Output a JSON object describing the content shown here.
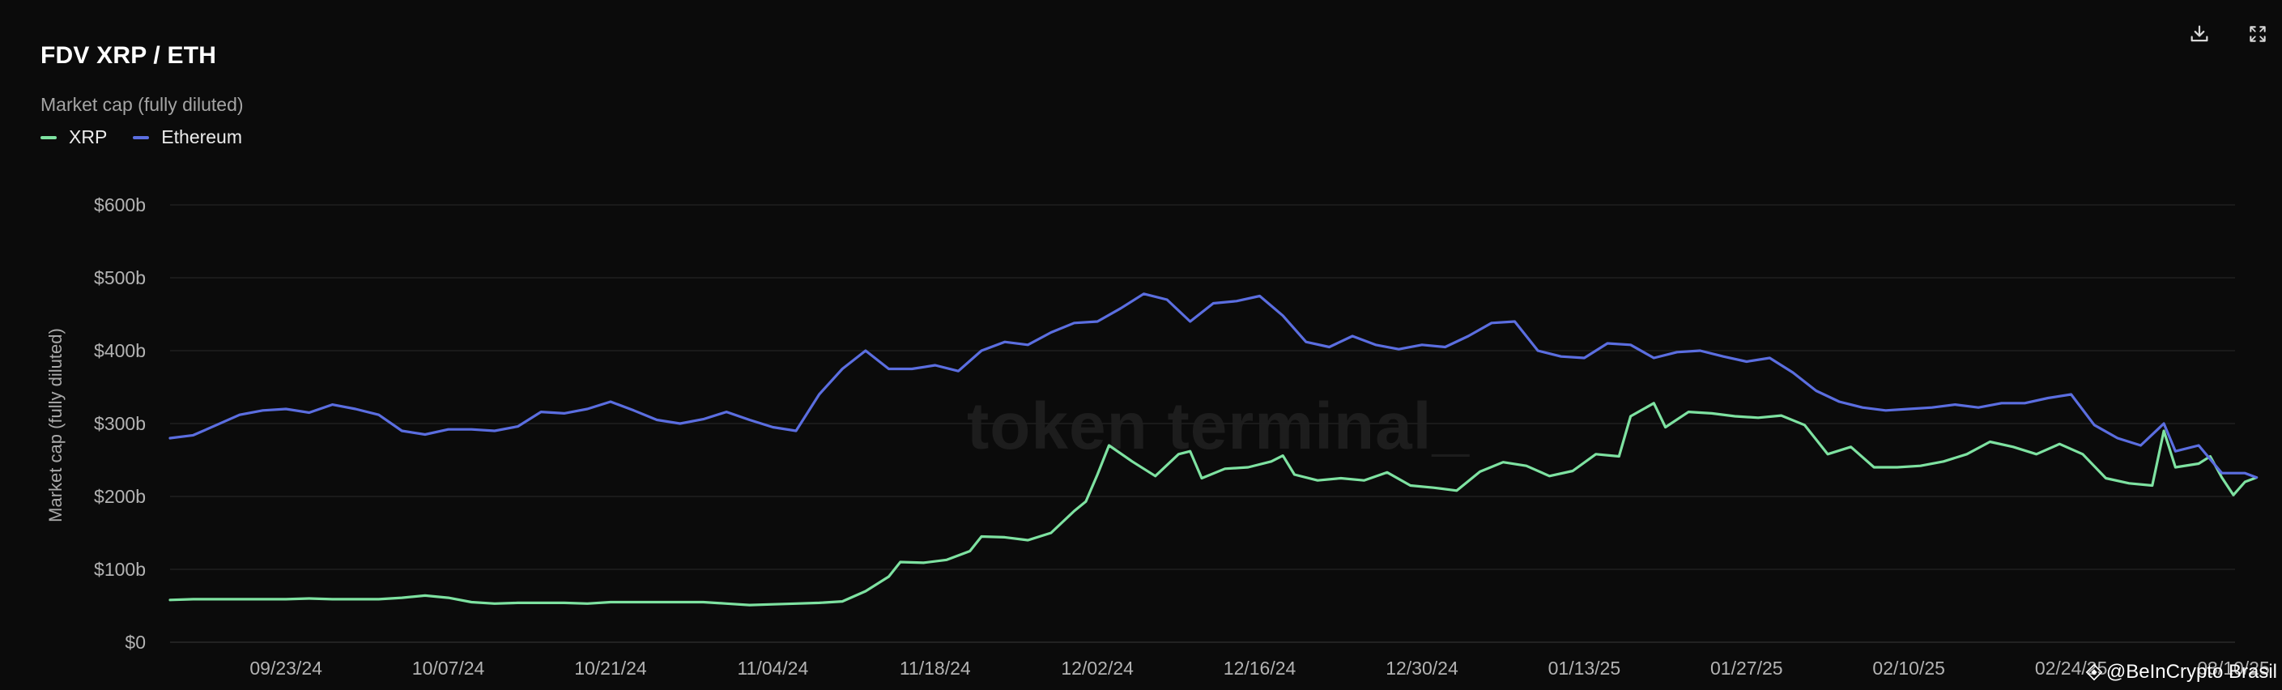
{
  "header": {
    "title": "FDV XRP / ETH",
    "subtitle": "Market cap (fully diluted)"
  },
  "toolbar": {
    "download_icon": "download-icon",
    "fullscreen_icon": "expand-icon"
  },
  "watermark": "token terminal_",
  "credit": "@BeInCrypto Brasil",
  "colors": {
    "xrp": "#7ee2a1",
    "ethereum": "#5b6ee0",
    "background": "#0b0b0b",
    "grid": "#1f1f1f"
  },
  "chart_data": {
    "type": "line",
    "title": "FDV XRP / ETH",
    "subtitle": "Market cap (fully diluted)",
    "ylabel": "Market cap (fully diluted)",
    "xlabel": "",
    "ylim": [
      0,
      600
    ],
    "y_unit": "billion USD",
    "yticks": [
      0,
      100,
      200,
      300,
      400,
      500,
      600
    ],
    "ytick_labels": [
      "$0",
      "$100b",
      "$200b",
      "$300b",
      "$400b",
      "$500b",
      "$600b"
    ],
    "xlim": [
      "2024-09-13",
      "2025-03-10"
    ],
    "xticks": [
      "2024-09-23",
      "2024-10-07",
      "2024-10-21",
      "2024-11-04",
      "2024-11-18",
      "2024-12-02",
      "2024-12-16",
      "2024-12-30",
      "2025-01-13",
      "2025-01-27",
      "2025-02-10",
      "2025-02-24",
      "2025-03-10"
    ],
    "xtick_labels": [
      "09/23/24",
      "10/07/24",
      "10/21/24",
      "11/04/24",
      "11/18/24",
      "12/02/24",
      "12/16/24",
      "12/30/24",
      "01/13/25",
      "01/27/25",
      "02/10/25",
      "02/24/25",
      "03/10/25"
    ],
    "grid": true,
    "legend_position": "top-left",
    "series": [
      {
        "name": "XRP",
        "color": "#7ee2a1",
        "points": [
          [
            "2024-09-13",
            58
          ],
          [
            "2024-09-15",
            59
          ],
          [
            "2024-09-17",
            59
          ],
          [
            "2024-09-19",
            59
          ],
          [
            "2024-09-21",
            59
          ],
          [
            "2024-09-23",
            59
          ],
          [
            "2024-09-25",
            60
          ],
          [
            "2024-09-27",
            59
          ],
          [
            "2024-09-29",
            59
          ],
          [
            "2024-10-01",
            59
          ],
          [
            "2024-10-03",
            61
          ],
          [
            "2024-10-05",
            64
          ],
          [
            "2024-10-07",
            61
          ],
          [
            "2024-10-09",
            55
          ],
          [
            "2024-10-11",
            53
          ],
          [
            "2024-10-13",
            54
          ],
          [
            "2024-10-15",
            54
          ],
          [
            "2024-10-17",
            54
          ],
          [
            "2024-10-19",
            53
          ],
          [
            "2024-10-21",
            55
          ],
          [
            "2024-10-23",
            55
          ],
          [
            "2024-10-25",
            55
          ],
          [
            "2024-10-27",
            55
          ],
          [
            "2024-10-29",
            55
          ],
          [
            "2024-10-31",
            53
          ],
          [
            "2024-11-02",
            51
          ],
          [
            "2024-11-04",
            52
          ],
          [
            "2024-11-06",
            53
          ],
          [
            "2024-11-08",
            54
          ],
          [
            "2024-11-10",
            56
          ],
          [
            "2024-11-12",
            70
          ],
          [
            "2024-11-14",
            90
          ],
          [
            "2024-11-15",
            110
          ],
          [
            "2024-11-17",
            109
          ],
          [
            "2024-11-19",
            113
          ],
          [
            "2024-11-21",
            125
          ],
          [
            "2024-11-22",
            145
          ],
          [
            "2024-11-24",
            144
          ],
          [
            "2024-11-26",
            140
          ],
          [
            "2024-11-28",
            150
          ],
          [
            "2024-11-30",
            180
          ],
          [
            "2024-12-01",
            193
          ],
          [
            "2024-12-02",
            230
          ],
          [
            "2024-12-03",
            270
          ],
          [
            "2024-12-05",
            248
          ],
          [
            "2024-12-07",
            228
          ],
          [
            "2024-12-09",
            258
          ],
          [
            "2024-12-10",
            262
          ],
          [
            "2024-12-11",
            225
          ],
          [
            "2024-12-13",
            238
          ],
          [
            "2024-12-15",
            240
          ],
          [
            "2024-12-17",
            248
          ],
          [
            "2024-12-18",
            256
          ],
          [
            "2024-12-19",
            230
          ],
          [
            "2024-12-21",
            222
          ],
          [
            "2024-12-23",
            225
          ],
          [
            "2024-12-25",
            222
          ],
          [
            "2024-12-27",
            233
          ],
          [
            "2024-12-29",
            215
          ],
          [
            "2024-12-31",
            212
          ],
          [
            "2025-01-02",
            208
          ],
          [
            "2025-01-04",
            234
          ],
          [
            "2025-01-06",
            247
          ],
          [
            "2025-01-08",
            242
          ],
          [
            "2025-01-10",
            228
          ],
          [
            "2025-01-12",
            235
          ],
          [
            "2025-01-14",
            258
          ],
          [
            "2025-01-16",
            255
          ],
          [
            "2025-01-17",
            310
          ],
          [
            "2025-01-19",
            328
          ],
          [
            "2025-01-20",
            295
          ],
          [
            "2025-01-22",
            316
          ],
          [
            "2025-01-24",
            314
          ],
          [
            "2025-01-26",
            310
          ],
          [
            "2025-01-28",
            308
          ],
          [
            "2025-01-30",
            311
          ],
          [
            "2025-02-01",
            298
          ],
          [
            "2025-02-03",
            258
          ],
          [
            "2025-02-05",
            268
          ],
          [
            "2025-02-07",
            240
          ],
          [
            "2025-02-09",
            240
          ],
          [
            "2025-02-11",
            242
          ],
          [
            "2025-02-13",
            248
          ],
          [
            "2025-02-15",
            258
          ],
          [
            "2025-02-17",
            275
          ],
          [
            "2025-02-19",
            268
          ],
          [
            "2025-02-21",
            258
          ],
          [
            "2025-02-23",
            272
          ],
          [
            "2025-02-25",
            258
          ],
          [
            "2025-02-27",
            225
          ],
          [
            "2025-03-01",
            218
          ],
          [
            "2025-03-03",
            215
          ],
          [
            "2025-03-04",
            290
          ],
          [
            "2025-03-05",
            240
          ],
          [
            "2025-03-07",
            245
          ],
          [
            "2025-03-08",
            255
          ],
          [
            "2025-03-09",
            226
          ],
          [
            "2025-03-10",
            202
          ],
          [
            "2025-03-11",
            220
          ],
          [
            "2025-03-12",
            226
          ]
        ]
      },
      {
        "name": "Ethereum",
        "color": "#5b6ee0",
        "points": [
          [
            "2024-09-13",
            280
          ],
          [
            "2024-09-15",
            284
          ],
          [
            "2024-09-17",
            298
          ],
          [
            "2024-09-19",
            312
          ],
          [
            "2024-09-21",
            318
          ],
          [
            "2024-09-23",
            320
          ],
          [
            "2024-09-25",
            315
          ],
          [
            "2024-09-27",
            326
          ],
          [
            "2024-09-29",
            320
          ],
          [
            "2024-10-01",
            312
          ],
          [
            "2024-10-03",
            290
          ],
          [
            "2024-10-05",
            285
          ],
          [
            "2024-10-07",
            292
          ],
          [
            "2024-10-09",
            292
          ],
          [
            "2024-10-11",
            290
          ],
          [
            "2024-10-13",
            296
          ],
          [
            "2024-10-15",
            316
          ],
          [
            "2024-10-17",
            314
          ],
          [
            "2024-10-19",
            320
          ],
          [
            "2024-10-21",
            330
          ],
          [
            "2024-10-23",
            318
          ],
          [
            "2024-10-25",
            305
          ],
          [
            "2024-10-27",
            300
          ],
          [
            "2024-10-29",
            306
          ],
          [
            "2024-10-31",
            316
          ],
          [
            "2024-11-02",
            305
          ],
          [
            "2024-11-04",
            295
          ],
          [
            "2024-11-06",
            290
          ],
          [
            "2024-11-08",
            340
          ],
          [
            "2024-11-10",
            375
          ],
          [
            "2024-11-12",
            400
          ],
          [
            "2024-11-14",
            375
          ],
          [
            "2024-11-16",
            375
          ],
          [
            "2024-11-18",
            380
          ],
          [
            "2024-11-20",
            372
          ],
          [
            "2024-11-22",
            400
          ],
          [
            "2024-11-24",
            412
          ],
          [
            "2024-11-26",
            408
          ],
          [
            "2024-11-28",
            425
          ],
          [
            "2024-11-30",
            438
          ],
          [
            "2024-12-02",
            440
          ],
          [
            "2024-12-04",
            458
          ],
          [
            "2024-12-06",
            478
          ],
          [
            "2024-12-08",
            470
          ],
          [
            "2024-12-10",
            440
          ],
          [
            "2024-12-12",
            465
          ],
          [
            "2024-12-14",
            468
          ],
          [
            "2024-12-16",
            475
          ],
          [
            "2024-12-18",
            448
          ],
          [
            "2024-12-20",
            412
          ],
          [
            "2024-12-22",
            405
          ],
          [
            "2024-12-24",
            420
          ],
          [
            "2024-12-26",
            408
          ],
          [
            "2024-12-28",
            402
          ],
          [
            "2024-12-30",
            408
          ],
          [
            "2025-01-01",
            405
          ],
          [
            "2025-01-03",
            420
          ],
          [
            "2025-01-05",
            438
          ],
          [
            "2025-01-07",
            440
          ],
          [
            "2025-01-09",
            400
          ],
          [
            "2025-01-11",
            392
          ],
          [
            "2025-01-13",
            390
          ],
          [
            "2025-01-15",
            410
          ],
          [
            "2025-01-17",
            408
          ],
          [
            "2025-01-19",
            390
          ],
          [
            "2025-01-21",
            398
          ],
          [
            "2025-01-23",
            400
          ],
          [
            "2025-01-25",
            392
          ],
          [
            "2025-01-27",
            385
          ],
          [
            "2025-01-29",
            390
          ],
          [
            "2025-01-31",
            370
          ],
          [
            "2025-02-02",
            345
          ],
          [
            "2025-02-04",
            330
          ],
          [
            "2025-02-06",
            322
          ],
          [
            "2025-02-08",
            318
          ],
          [
            "2025-02-10",
            320
          ],
          [
            "2025-02-12",
            322
          ],
          [
            "2025-02-14",
            326
          ],
          [
            "2025-02-16",
            322
          ],
          [
            "2025-02-18",
            328
          ],
          [
            "2025-02-20",
            328
          ],
          [
            "2025-02-22",
            335
          ],
          [
            "2025-02-24",
            340
          ],
          [
            "2025-02-26",
            298
          ],
          [
            "2025-02-28",
            280
          ],
          [
            "2025-03-02",
            270
          ],
          [
            "2025-03-04",
            300
          ],
          [
            "2025-03-05",
            262
          ],
          [
            "2025-03-07",
            270
          ],
          [
            "2025-03-09",
            232
          ],
          [
            "2025-03-11",
            232
          ],
          [
            "2025-03-12",
            226
          ]
        ]
      }
    ]
  }
}
